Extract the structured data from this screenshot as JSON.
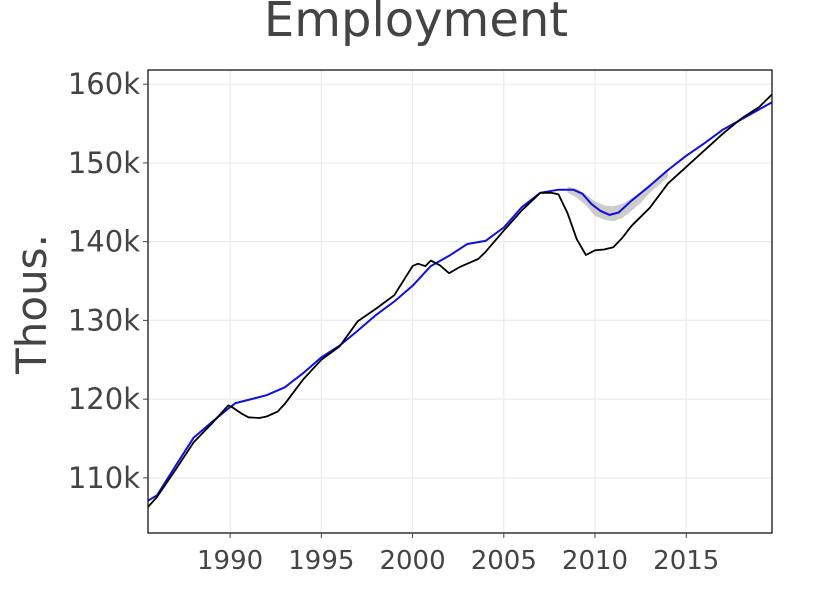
{
  "chart_data": {
    "type": "line",
    "title": "Employment",
    "xlabel": "",
    "ylabel": "Thous.",
    "xlim": [
      1985.5,
      2019.7
    ],
    "ylim": [
      103000,
      161800
    ],
    "x_ticks": [
      1990,
      1995,
      2000,
      2005,
      2010,
      2015
    ],
    "x_tick_labels": [
      "1990",
      "1995",
      "2000",
      "2005",
      "2010",
      "2015"
    ],
    "y_ticks": [
      110000,
      120000,
      130000,
      140000,
      150000,
      160000
    ],
    "y_tick_labels": [
      "110k",
      "120k",
      "130k",
      "140k",
      "150k",
      "160k"
    ],
    "grid": true,
    "legend": "none",
    "colors": {
      "actual": "#000000",
      "fitted": "#1010dd",
      "band": "#bbbbbb"
    },
    "series": [
      {
        "role": "actual",
        "x": [
          1985.5,
          1986,
          1987,
          1988,
          1989,
          1989.9,
          1990.1,
          1990.6,
          1991,
          1991.6,
          1992,
          1992.6,
          1993,
          1994,
          1995,
          1996,
          1997,
          1998,
          1999,
          2000,
          2000.3,
          2000.7,
          2001,
          2001.5,
          2002,
          2002.6,
          2003,
          2003.6,
          2004,
          2005,
          2006,
          2007,
          2007.6,
          2008,
          2008.5,
          2009,
          2009.5,
          2010,
          2010.5,
          2011,
          2011.5,
          2012,
          2013,
          2014,
          2015,
          2016,
          2017,
          2018,
          2019,
          2019.7
        ],
        "y": [
          106300,
          107600,
          111000,
          114500,
          116900,
          119200,
          119000,
          118200,
          117700,
          117600,
          117800,
          118400,
          119400,
          122500,
          125000,
          126700,
          129900,
          131500,
          133200,
          136900,
          137200,
          136900,
          137600,
          137000,
          136000,
          136800,
          137200,
          137800,
          138700,
          141400,
          144000,
          146200,
          146200,
          146000,
          143600,
          140300,
          138300,
          138900,
          139000,
          139300,
          140500,
          142000,
          144300,
          147400,
          149500,
          151600,
          153700,
          155600,
          157100,
          158700
        ]
      },
      {
        "role": "fitted",
        "x": [
          1985.5,
          1986,
          1987,
          1988,
          1989,
          1989.9,
          1990.3,
          1991,
          1992,
          1993,
          1994,
          1995,
          1996,
          1997,
          1998,
          1999,
          2000,
          2001,
          2002,
          2003,
          2004,
          2005,
          2006,
          2007,
          2008,
          2008.8,
          2009.3,
          2009.8,
          2010.3,
          2010.8,
          2011.3,
          2012,
          2013,
          2014,
          2015,
          2016,
          2017,
          2018,
          2019,
          2019.7
        ],
        "y": [
          107100,
          107800,
          111500,
          115100,
          117100,
          118800,
          119500,
          119900,
          120500,
          121500,
          123300,
          125300,
          126800,
          128700,
          130700,
          132400,
          134400,
          136900,
          138200,
          139700,
          140100,
          141800,
          144400,
          146200,
          146600,
          146600,
          146100,
          144800,
          143900,
          143400,
          143700,
          145200,
          147100,
          149100,
          150900,
          152500,
          154200,
          155500,
          156800,
          157700
        ]
      }
    ],
    "band": {
      "x": [
        2008.5,
        2009.0,
        2009.5,
        2010.0,
        2010.5,
        2011.0,
        2011.5,
        2012.0,
        2012.5,
        2013.0,
        2013.5,
        2014.0
      ],
      "lower": [
        146200,
        145600,
        144600,
        143300,
        142800,
        142600,
        143000,
        143900,
        144900,
        146200,
        147200,
        148200
      ],
      "upper": [
        147000,
        146700,
        146000,
        145100,
        144600,
        144500,
        144800,
        145500,
        146300,
        147300,
        148300,
        149300
      ]
    }
  }
}
